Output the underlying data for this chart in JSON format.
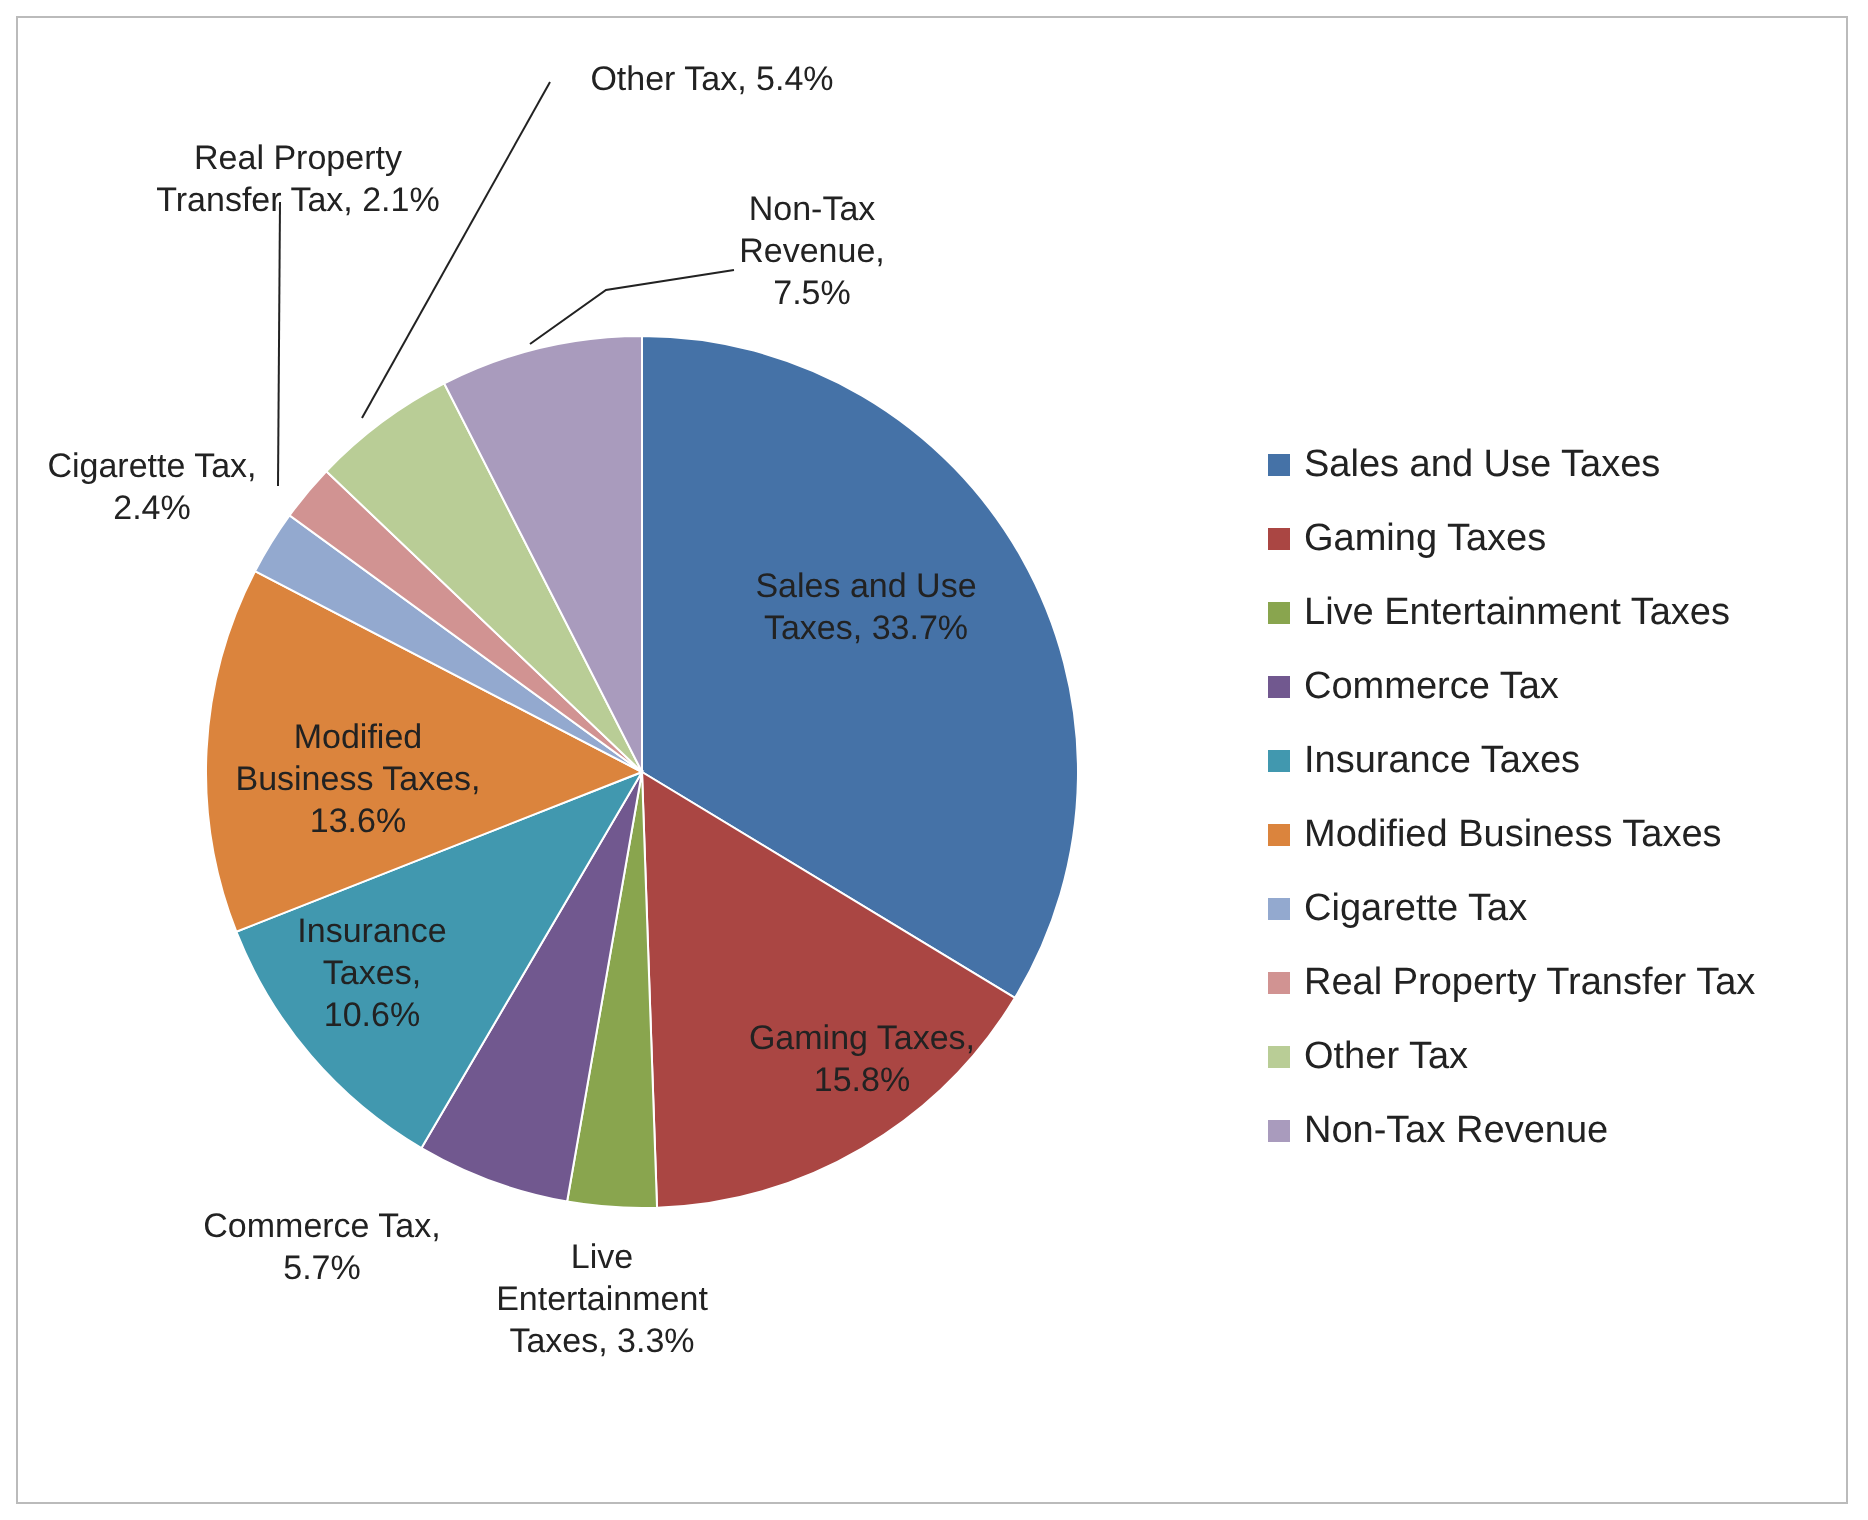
{
  "chart_data": {
    "type": "pie",
    "categories": [
      "Sales and Use Taxes",
      "Gaming Taxes",
      "Live Entertainment Taxes",
      "Commerce Tax",
      "Insurance Taxes",
      "Modified Business Taxes",
      "Cigarette Tax",
      "Real Property Transfer Tax",
      "Other Tax",
      "Non-Tax Revenue"
    ],
    "values": [
      33.7,
      15.8,
      3.3,
      5.7,
      10.6,
      13.6,
      2.4,
      2.1,
      5.4,
      7.5
    ],
    "value_labels": [
      "Sales and Use Taxes, 33.7%",
      "Gaming Taxes, 15.8%",
      "Live Entertainment Taxes, 3.3%",
      "Commerce Tax, 5.7%",
      "Insurance Taxes, 10.6%",
      "Modified Business Taxes, 13.6%",
      "Cigarette Tax, 2.4%",
      "Real Property Transfer Tax, 2.1%",
      "Other Tax, 5.4%",
      "Non-Tax Revenue, 7.5%"
    ],
    "colors": [
      "#4572a7",
      "#aa4643",
      "#89a54e",
      "#71588f",
      "#4198af",
      "#db843d",
      "#93a9cf",
      "#d19392",
      "#b9cd96",
      "#a99bbd"
    ],
    "legend": "right"
  }
}
